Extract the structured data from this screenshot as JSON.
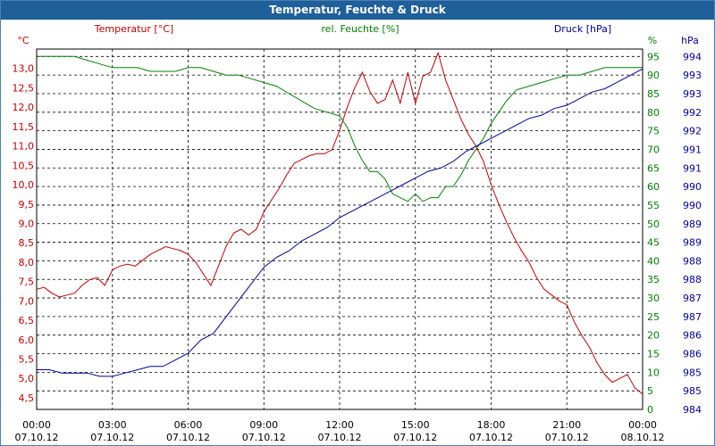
{
  "chart_data": {
    "type": "line",
    "title": "Temperatur, Feuchte & Druck",
    "colors": {
      "title_bar": "#1f5f9a",
      "temperature": "#c00000",
      "humidity": "#008000",
      "pressure": "#000099",
      "grid": "#000000",
      "frame": "#4b7fb0"
    },
    "x_axis": {
      "range": [
        "07.10.12 00:00",
        "08.10.12 00:00"
      ],
      "ticks": [
        {
          "time": "00:00",
          "date": "07.10.12"
        },
        {
          "time": "03:00",
          "date": "07.10.12"
        },
        {
          "time": "06:00",
          "date": "07.10.12"
        },
        {
          "time": "09:00",
          "date": "07.10.12"
        },
        {
          "time": "12:00",
          "date": "07.10.12"
        },
        {
          "time": "15:00",
          "date": "07.10.12"
        },
        {
          "time": "18:00",
          "date": "07.10.12"
        },
        {
          "time": "21:00",
          "date": "07.10.12"
        },
        {
          "time": "00:00",
          "date": "08.10.12"
        }
      ]
    },
    "y_left": {
      "label": "Temperatur [°C]",
      "unit": "°C",
      "range": [
        4.2,
        13.5
      ],
      "ticks": [
        "13,0",
        "12,5",
        "12,0",
        "11,5",
        "11,0",
        "10,5",
        "10,0",
        "9,5",
        "9,0",
        "8,5",
        "8,0",
        "7,5",
        "7,0",
        "6,5",
        "6,0",
        "5,5",
        "5,0",
        "4,5"
      ]
    },
    "y_mid": {
      "label": "rel. Feuchte [%]",
      "unit": "%",
      "range": [
        0,
        97
      ],
      "ticks": [
        "95",
        "90",
        "85",
        "80",
        "75",
        "70",
        "65",
        "60",
        "55",
        "50",
        "45",
        "40",
        "35",
        "30",
        "25",
        "20",
        "15",
        "10",
        "5",
        "0"
      ]
    },
    "y_right": {
      "label": "Druck [hPa]",
      "unit": "hPa",
      "range": [
        983.7,
        994.6
      ],
      "ticks": [
        "994",
        "993",
        "993",
        "992",
        "992",
        "991",
        "991",
        "990",
        "990",
        "989",
        "989",
        "988",
        "988",
        "987",
        "987",
        "986",
        "986",
        "985",
        "985",
        "984"
      ]
    },
    "series": [
      {
        "name": "Temperatur [°C]",
        "axis": "left",
        "x_hours": [
          0,
          0.3,
          0.6,
          0.9,
          1.2,
          1.5,
          1.8,
          2.1,
          2.4,
          2.7,
          3.0,
          3.3,
          3.6,
          3.9,
          4.2,
          4.5,
          4.8,
          5.1,
          5.4,
          5.7,
          6.0,
          6.3,
          6.6,
          6.9,
          7.2,
          7.5,
          7.8,
          8.1,
          8.4,
          8.7,
          9.0,
          9.3,
          9.6,
          9.9,
          10.2,
          10.5,
          10.8,
          11.1,
          11.4,
          11.7,
          12.0,
          12.3,
          12.6,
          12.9,
          13.2,
          13.5,
          13.8,
          14.1,
          14.4,
          14.7,
          15.0,
          15.3,
          15.6,
          15.9,
          16.2,
          16.5,
          16.8,
          17.1,
          17.4,
          17.7,
          18.0,
          18.3,
          18.6,
          18.9,
          19.2,
          19.5,
          19.8,
          20.1,
          20.4,
          20.7,
          21.0,
          21.3,
          21.6,
          21.9,
          22.2,
          22.5,
          22.8,
          23.1,
          23.4,
          23.7,
          24.0
        ],
        "values": [
          7.3,
          7.35,
          7.2,
          7.1,
          7.15,
          7.2,
          7.4,
          7.55,
          7.6,
          7.4,
          7.8,
          7.9,
          7.95,
          7.9,
          8.05,
          8.2,
          8.3,
          8.4,
          8.35,
          8.3,
          8.2,
          8.0,
          7.7,
          7.4,
          7.9,
          8.4,
          8.75,
          8.85,
          8.7,
          8.85,
          9.3,
          9.6,
          9.9,
          10.25,
          10.55,
          10.65,
          10.75,
          10.8,
          10.8,
          10.9,
          11.4,
          12.0,
          12.5,
          12.9,
          12.4,
          12.1,
          12.2,
          12.7,
          12.1,
          12.9,
          12.1,
          12.8,
          12.9,
          13.4,
          12.7,
          12.2,
          11.7,
          11.3,
          11.0,
          10.6,
          10.0,
          9.5,
          9.05,
          8.65,
          8.3,
          8.0,
          7.6,
          7.3,
          7.15,
          7.0,
          6.9,
          6.45,
          6.1,
          5.8,
          5.4,
          5.1,
          4.9,
          5.0,
          5.1,
          4.75,
          4.6
        ]
      },
      {
        "name": "rel. Feuchte [%]",
        "axis": "mid",
        "x_hours": [
          0,
          0.5,
          1.0,
          1.5,
          2.0,
          2.5,
          3.0,
          3.5,
          4.0,
          4.5,
          5.0,
          5.5,
          6.0,
          6.5,
          7.0,
          7.5,
          8.0,
          8.5,
          9.0,
          9.5,
          10.0,
          10.5,
          11.0,
          11.5,
          12.0,
          12.3,
          12.6,
          12.9,
          13.2,
          13.5,
          13.8,
          14.1,
          14.4,
          14.7,
          15.0,
          15.3,
          15.6,
          15.9,
          16.2,
          16.5,
          16.8,
          17.1,
          17.4,
          17.7,
          18.0,
          18.3,
          18.6,
          19.0,
          19.5,
          20.0,
          20.5,
          21.0,
          21.5,
          22.0,
          22.5,
          23.0,
          23.5,
          24.0
        ],
        "values": [
          95,
          95,
          95,
          95,
          94,
          93,
          92,
          92,
          92,
          91,
          91,
          91,
          92,
          92,
          91,
          90,
          90,
          89,
          88,
          87,
          85,
          83,
          81,
          80,
          79,
          76,
          71,
          67,
          64,
          64,
          62,
          58,
          57,
          56,
          58,
          56,
          57,
          57,
          60,
          60,
          63,
          67,
          70,
          73,
          77,
          80,
          83,
          86,
          87,
          88,
          89,
          90,
          90,
          91,
          92,
          92,
          92,
          92
        ]
      },
      {
        "name": "Druck [hPa]",
        "axis": "right",
        "x_hours": [
          0,
          0.5,
          1.0,
          1.5,
          2.0,
          2.5,
          3.0,
          3.5,
          4.0,
          4.5,
          5.0,
          5.5,
          6.0,
          6.5,
          7.0,
          7.5,
          8.0,
          8.5,
          9.0,
          9.5,
          10.0,
          10.5,
          11.0,
          11.5,
          12.0,
          12.5,
          13.0,
          13.5,
          14.0,
          14.5,
          15.0,
          15.5,
          16.0,
          16.5,
          17.0,
          17.5,
          18.0,
          18.5,
          19.0,
          19.5,
          20.0,
          20.5,
          21.0,
          21.5,
          22.0,
          22.5,
          23.0,
          23.5,
          24.0
        ],
        "values": [
          984.9,
          984.9,
          984.8,
          984.8,
          984.8,
          984.7,
          984.7,
          984.8,
          984.9,
          985.0,
          985.0,
          985.2,
          985.4,
          985.8,
          986.0,
          986.5,
          987.0,
          987.5,
          988.0,
          988.3,
          988.5,
          988.8,
          989.0,
          989.2,
          989.5,
          989.7,
          989.9,
          990.1,
          990.3,
          990.5,
          990.7,
          990.9,
          991.0,
          991.2,
          991.5,
          991.7,
          991.9,
          992.1,
          992.3,
          992.5,
          992.6,
          992.8,
          992.9,
          993.1,
          993.3,
          993.4,
          993.6,
          993.8,
          994.0
        ]
      }
    ]
  }
}
